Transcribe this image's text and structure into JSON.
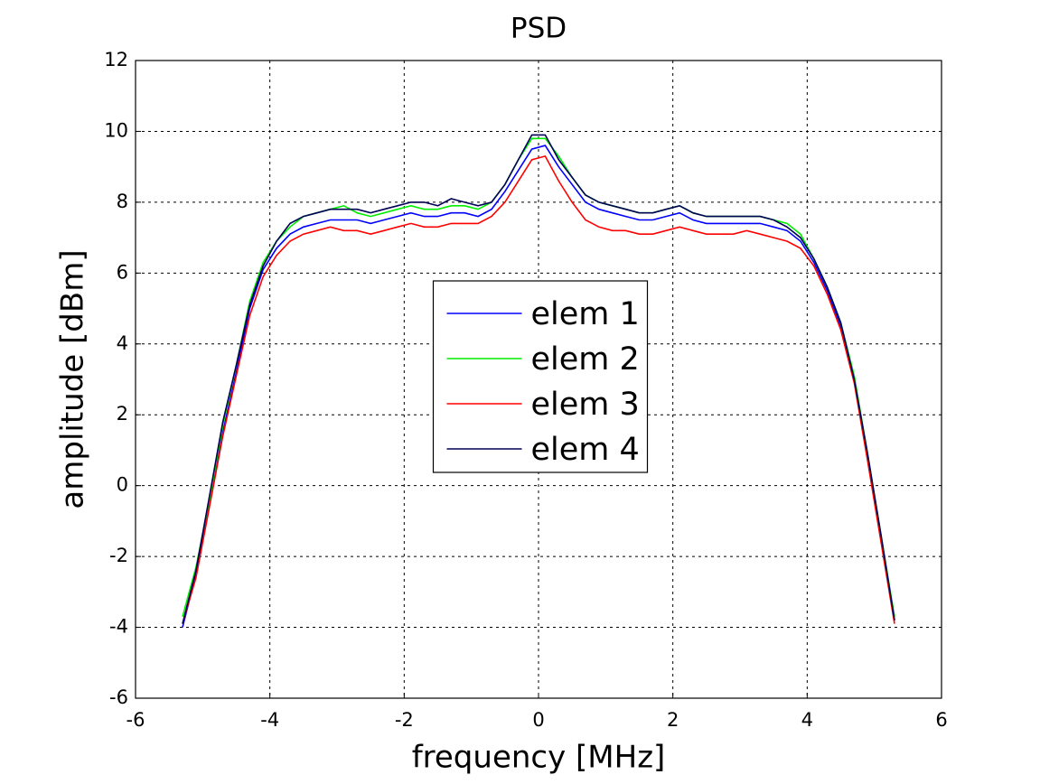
{
  "chart_data": {
    "type": "line",
    "title": "PSD",
    "x_label": "frequency [MHz]",
    "y_label": "amplitude [dBm]",
    "x": [
      -5.3,
      -5.1,
      -4.9,
      -4.7,
      -4.5,
      -4.3,
      -4.1,
      -3.9,
      -3.7,
      -3.5,
      -3.3,
      -3.1,
      -2.9,
      -2.7,
      -2.5,
      -2.3,
      -2.1,
      -1.9,
      -1.7,
      -1.5,
      -1.3,
      -1.1,
      -0.9,
      -0.7,
      -0.5,
      -0.3,
      -0.1,
      0.1,
      0.3,
      0.5,
      0.7,
      0.9,
      1.1,
      1.3,
      1.5,
      1.7,
      1.9,
      2.1,
      2.3,
      2.5,
      2.7,
      2.9,
      3.1,
      3.3,
      3.5,
      3.7,
      3.9,
      4.1,
      4.3,
      4.5,
      4.7,
      4.9,
      5.1,
      5.3
    ],
    "series": [
      {
        "name": "elem 1",
        "color": "#0000ff",
        "values": [
          -4.0,
          -2.5,
          -0.5,
          1.5,
          3.2,
          5.0,
          6.1,
          6.7,
          7.1,
          7.3,
          7.4,
          7.5,
          7.5,
          7.5,
          7.4,
          7.5,
          7.6,
          7.7,
          7.6,
          7.6,
          7.7,
          7.7,
          7.6,
          7.8,
          8.3,
          8.9,
          9.5,
          9.6,
          9.0,
          8.5,
          8.0,
          7.8,
          7.7,
          7.6,
          7.5,
          7.5,
          7.6,
          7.7,
          7.5,
          7.4,
          7.4,
          7.4,
          7.4,
          7.4,
          7.3,
          7.2,
          6.9,
          6.3,
          5.5,
          4.5,
          3.0,
          0.8,
          -1.5,
          -3.8
        ]
      },
      {
        "name": "elem 2",
        "color": "#00ee00",
        "values": [
          -3.7,
          -2.3,
          -0.4,
          1.7,
          3.4,
          5.2,
          6.3,
          6.9,
          7.3,
          7.6,
          7.7,
          7.8,
          7.9,
          7.7,
          7.6,
          7.7,
          7.8,
          7.9,
          7.8,
          7.8,
          7.9,
          7.9,
          7.8,
          8.0,
          8.5,
          9.2,
          9.8,
          9.8,
          9.3,
          8.7,
          8.2,
          8.0,
          7.9,
          7.8,
          7.7,
          7.7,
          7.8,
          7.9,
          7.7,
          7.6,
          7.6,
          7.6,
          7.6,
          7.6,
          7.5,
          7.4,
          7.1,
          6.4,
          5.6,
          4.6,
          3.1,
          0.9,
          -1.4,
          -3.7
        ]
      },
      {
        "name": "elem 3",
        "color": "#ff0000",
        "values": [
          -3.9,
          -2.6,
          -0.6,
          1.4,
          3.1,
          4.8,
          5.9,
          6.5,
          6.9,
          7.1,
          7.2,
          7.3,
          7.2,
          7.2,
          7.1,
          7.2,
          7.3,
          7.4,
          7.3,
          7.3,
          7.4,
          7.4,
          7.4,
          7.6,
          8.0,
          8.6,
          9.2,
          9.3,
          8.6,
          8.0,
          7.5,
          7.3,
          7.2,
          7.2,
          7.1,
          7.1,
          7.2,
          7.3,
          7.2,
          7.1,
          7.1,
          7.1,
          7.2,
          7.1,
          7.0,
          6.9,
          6.7,
          6.2,
          5.4,
          4.4,
          2.9,
          0.7,
          -1.6,
          -3.9
        ]
      },
      {
        "name": "elem 4",
        "color": "#000055",
        "values": [
          -3.9,
          -2.4,
          -0.3,
          1.8,
          3.4,
          5.1,
          6.2,
          6.9,
          7.4,
          7.6,
          7.7,
          7.8,
          7.8,
          7.8,
          7.7,
          7.8,
          7.9,
          8.0,
          8.0,
          7.9,
          8.1,
          8.0,
          7.9,
          8.0,
          8.5,
          9.2,
          9.9,
          9.9,
          9.2,
          8.7,
          8.2,
          8.0,
          7.9,
          7.8,
          7.7,
          7.7,
          7.8,
          7.9,
          7.7,
          7.6,
          7.6,
          7.6,
          7.6,
          7.6,
          7.5,
          7.3,
          7.0,
          6.4,
          5.6,
          4.6,
          3.0,
          0.9,
          -1.4,
          -3.8
        ]
      }
    ],
    "xlim": [
      -6,
      6
    ],
    "xticks": [
      -6,
      -4,
      -2,
      0,
      2,
      4,
      6
    ],
    "ylim": [
      -6,
      12
    ],
    "yticks": [
      -6,
      -4,
      -2,
      0,
      2,
      4,
      6,
      8,
      10,
      12
    ],
    "grid": true,
    "legend": "center"
  }
}
